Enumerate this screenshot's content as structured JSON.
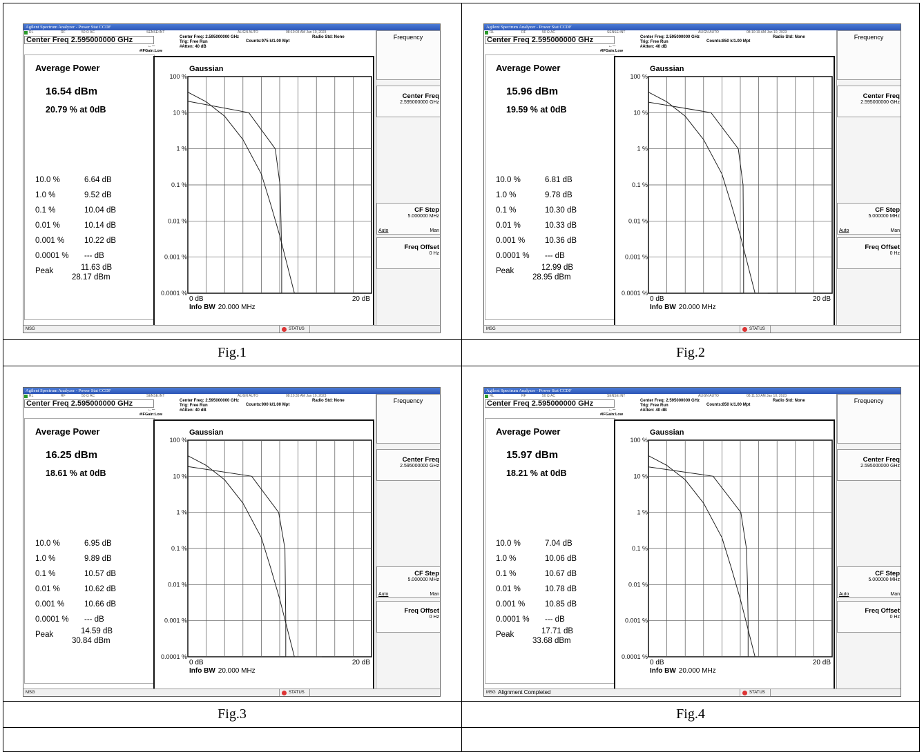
{
  "panels": [
    {
      "caption": "Fig.1",
      "title": "Agilent Spectrum Analyzer - Power Stat CCDF",
      "status_items": [
        "RL",
        "RF",
        "50 Ω AC",
        "SENSE:INT",
        "ALIGN AUTO",
        "08:10:03 AM Jan 10, 2023"
      ],
      "center_freq": "Center Freq 2.595000000 GHz",
      "info_line1": "Center Freq: 2.595000000 GHz",
      "info_line2": "Trig: Free Run",
      "info_line3": "#Atten: 40 dB",
      "counts": "Counts:975 k/1.00 Mpt",
      "radio_std": "Radio Std: None",
      "if_gain": "#IFGain:Low",
      "softkeys": {
        "frequency": "Frequency",
        "center_freq": "Center Freq",
        "center_freq_value": "2.595000000 GHz",
        "cf_step": "CF Step",
        "cf_step_value": "5.000000 MHz",
        "auto": "Auto",
        "man": "Man",
        "freq_offset": "Freq Offset",
        "freq_offset_value": "0 Hz"
      },
      "avg_label": "Average Power",
      "avg_dbm": "16.54 dBm",
      "avg_pct": "20.79 % at 0dB",
      "stats": [
        {
          "pct": "10.0 %",
          "val": "6.64 dB"
        },
        {
          "pct": "1.0 %",
          "val": "9.52 dB"
        },
        {
          "pct": "0.1 %",
          "val": "10.04 dB"
        },
        {
          "pct": "0.01 %",
          "val": "10.14 dB"
        },
        {
          "pct": "0.001 %",
          "val": "10.22 dB"
        },
        {
          "pct": "0.0001 %",
          "val": "--- dB"
        }
      ],
      "peak_label": "Peak",
      "peak_db": "11.63 dB",
      "peak_dbm": "28.17 dBm",
      "msg": "MSG",
      "msg_text": "",
      "status": "STATUS"
    },
    {
      "caption": "Fig.2",
      "title": "Agilent Spectrum Analyzer - Power Stat CCDF",
      "status_items": [
        "RL",
        "RF",
        "50 Ω AC",
        "SENSE:INT",
        "ALIGN AUTO",
        "08:10:19 AM Jan 10, 2023"
      ],
      "center_freq": "Center Freq 2.595000000 GHz",
      "info_line1": "Center Freq: 2.595000000 GHz",
      "info_line2": "Trig: Free Run",
      "info_line3": "#Atten: 40 dB",
      "counts": "Counts:850 k/1.00 Mpt",
      "radio_std": "Radio Std: None",
      "if_gain": "#IFGain:Low",
      "softkeys": {
        "frequency": "Frequency",
        "center_freq": "Center Freq",
        "center_freq_value": "2.595000000 GHz",
        "cf_step": "CF Step",
        "cf_step_value": "5.000000 MHz",
        "auto": "Auto",
        "man": "Man",
        "freq_offset": "Freq Offset",
        "freq_offset_value": "0 Hz"
      },
      "avg_label": "Average Power",
      "avg_dbm": "15.96 dBm",
      "avg_pct": "19.59 % at 0dB",
      "stats": [
        {
          "pct": "10.0 %",
          "val": "6.81 dB"
        },
        {
          "pct": "1.0 %",
          "val": "9.78 dB"
        },
        {
          "pct": "0.1 %",
          "val": "10.30 dB"
        },
        {
          "pct": "0.01 %",
          "val": "10.33 dB"
        },
        {
          "pct": "0.001 %",
          "val": "10.36 dB"
        },
        {
          "pct": "0.0001 %",
          "val": "--- dB"
        }
      ],
      "peak_label": "Peak",
      "peak_db": "12.99 dB",
      "peak_dbm": "28.95 dBm",
      "msg": "MSG",
      "msg_text": "",
      "status": "STATUS"
    },
    {
      "caption": "Fig.3",
      "title": "Agilent Spectrum Analyzer - Power Stat CCDF",
      "status_items": [
        "RL",
        "RF",
        "50 Ω AC",
        "SENSE:INT",
        "ALIGN AUTO",
        "08:10:35 AM Jan 10, 2023"
      ],
      "center_freq": "Center Freq 2.595000000 GHz",
      "info_line1": "Center Freq: 2.595000000 GHz",
      "info_line2": "Trig: Free Run",
      "info_line3": "#Atten: 40 dB",
      "counts": "Counts:900 k/1.00 Mpt",
      "radio_std": "Radio Std: None",
      "if_gain": "#IFGain:Low",
      "softkeys": {
        "frequency": "Frequency",
        "center_freq": "Center Freq",
        "center_freq_value": "2.595000000 GHz",
        "cf_step": "CF Step",
        "cf_step_value": "5.000000 MHz",
        "auto": "Auto",
        "man": "Man",
        "freq_offset": "Freq Offset",
        "freq_offset_value": "0 Hz"
      },
      "avg_label": "Average Power",
      "avg_dbm": "16.25 dBm",
      "avg_pct": "18.61 % at 0dB",
      "stats": [
        {
          "pct": "10.0 %",
          "val": "6.95 dB"
        },
        {
          "pct": "1.0 %",
          "val": "9.89 dB"
        },
        {
          "pct": "0.1 %",
          "val": "10.57 dB"
        },
        {
          "pct": "0.01 %",
          "val": "10.62 dB"
        },
        {
          "pct": "0.001 %",
          "val": "10.66 dB"
        },
        {
          "pct": "0.0001 %",
          "val": "--- dB"
        }
      ],
      "peak_label": "Peak",
      "peak_db": "14.59 dB",
      "peak_dbm": "30.84 dBm",
      "msg": "MSG",
      "msg_text": "",
      "status": "STATUS"
    },
    {
      "caption": "Fig.4",
      "title": "Agilent Spectrum Analyzer - Power Stat CCDF",
      "status_items": [
        "RL",
        "RF",
        "50 Ω AC",
        "SENSE:INT",
        "ALIGN AUTO",
        "08:11:10 AM Jan 10, 2023"
      ],
      "center_freq": "Center Freq 2.595000000 GHz",
      "info_line1": "Center Freq: 2.595000000 GHz",
      "info_line2": "Trig: Free Run",
      "info_line3": "#Atten: 40 dB",
      "counts": "Counts:850 k/1.00 Mpt",
      "radio_std": "Radio Std: None",
      "if_gain": "#IFGain:Low",
      "softkeys": {
        "frequency": "Frequency",
        "center_freq": "Center Freq",
        "center_freq_value": "2.595000000 GHz",
        "cf_step": "CF Step",
        "cf_step_value": "5.000000 MHz",
        "auto": "Auto",
        "man": "Man",
        "freq_offset": "Freq Offset",
        "freq_offset_value": "0 Hz"
      },
      "avg_label": "Average Power",
      "avg_dbm": "15.97 dBm",
      "avg_pct": "18.21 % at 0dB",
      "stats": [
        {
          "pct": "10.0 %",
          "val": "7.04 dB"
        },
        {
          "pct": "1.0 %",
          "val": "10.06 dB"
        },
        {
          "pct": "0.1 %",
          "val": "10.67 dB"
        },
        {
          "pct": "0.01 %",
          "val": "10.78 dB"
        },
        {
          "pct": "0.001 %",
          "val": "10.85 dB"
        },
        {
          "pct": "0.0001 %",
          "val": "--- dB"
        }
      ],
      "peak_label": "Peak",
      "peak_db": "17.71 dB",
      "peak_dbm": "33.68 dBm",
      "msg": "MSG",
      "msg_text": "Alignment Completed",
      "status": "STATUS"
    }
  ],
  "plot_labels": {
    "gaussian": "Gaussian",
    "y_ticks": [
      "100 %",
      "10 %",
      "1 %",
      "0.1 %",
      "0.01 %",
      "0.001 %",
      "0.0001 %"
    ],
    "x_start": "0 dB",
    "x_end": "20 dB",
    "info_bw_label": "Info BW",
    "info_bw_value": "20.000 MHz"
  },
  "chart_data": [
    {
      "type": "line",
      "x_unit": "dB",
      "xlim": [
        0,
        20
      ],
      "y_scale": "log",
      "ylim_percent": [
        0.0001,
        100
      ],
      "series": [
        {
          "name": "Gaussian",
          "points": [
            [
              0,
              37
            ],
            [
              2,
              20
            ],
            [
              4,
              8
            ],
            [
              6,
              1.8
            ],
            [
              8,
              0.2
            ],
            [
              9,
              0.03
            ],
            [
              10,
              0.004
            ],
            [
              11,
              0.0004
            ],
            [
              11.6,
              0.0001
            ]
          ]
        },
        {
          "values_db_at_percent": [
            [
              20.79,
              0
            ],
            [
              10.0,
              6.64
            ],
            [
              1.0,
              9.52
            ],
            [
              0.1,
              10.04
            ],
            [
              0.01,
              10.14
            ],
            [
              0.001,
              10.22
            ],
            [
              0.0001,
              11.63
            ]
          ]
        }
      ]
    },
    {
      "type": "line",
      "x_unit": "dB",
      "xlim": [
        0,
        20
      ],
      "y_scale": "log",
      "ylim_percent": [
        0.0001,
        100
      ],
      "series": [
        {
          "name": "Gaussian",
          "points": [
            [
              0,
              37
            ],
            [
              2,
              20
            ],
            [
              4,
              8
            ],
            [
              6,
              1.8
            ],
            [
              8,
              0.2
            ],
            [
              9,
              0.03
            ],
            [
              10,
              0.004
            ],
            [
              11,
              0.0004
            ],
            [
              11.6,
              0.0001
            ]
          ]
        },
        {
          "values_db_at_percent": [
            [
              19.59,
              0
            ],
            [
              10.0,
              6.81
            ],
            [
              1.0,
              9.78
            ],
            [
              0.1,
              10.3
            ],
            [
              0.01,
              10.33
            ],
            [
              0.001,
              10.36
            ],
            [
              0.0001,
              12.99
            ]
          ]
        }
      ]
    },
    {
      "type": "line",
      "x_unit": "dB",
      "xlim": [
        0,
        20
      ],
      "y_scale": "log",
      "ylim_percent": [
        0.0001,
        100
      ],
      "series": [
        {
          "name": "Gaussian",
          "points": [
            [
              0,
              37
            ],
            [
              2,
              20
            ],
            [
              4,
              8
            ],
            [
              6,
              1.8
            ],
            [
              8,
              0.2
            ],
            [
              9,
              0.03
            ],
            [
              10,
              0.004
            ],
            [
              11,
              0.0004
            ],
            [
              11.6,
              0.0001
            ]
          ]
        },
        {
          "values_db_at_percent": [
            [
              18.61,
              0
            ],
            [
              10.0,
              6.95
            ],
            [
              1.0,
              9.89
            ],
            [
              0.1,
              10.57
            ],
            [
              0.01,
              10.62
            ],
            [
              0.001,
              10.66
            ],
            [
              0.0001,
              14.59
            ]
          ]
        }
      ]
    },
    {
      "type": "line",
      "x_unit": "dB",
      "xlim": [
        0,
        20
      ],
      "y_scale": "log",
      "ylim_percent": [
        0.0001,
        100
      ],
      "series": [
        {
          "name": "Gaussian",
          "points": [
            [
              0,
              37
            ],
            [
              2,
              20
            ],
            [
              4,
              8
            ],
            [
              6,
              1.8
            ],
            [
              8,
              0.2
            ],
            [
              9,
              0.03
            ],
            [
              10,
              0.004
            ],
            [
              11,
              0.0004
            ],
            [
              11.6,
              0.0001
            ]
          ]
        },
        {
          "values_db_at_percent": [
            [
              18.21,
              0
            ],
            [
              10.0,
              7.04
            ],
            [
              1.0,
              10.06
            ],
            [
              0.1,
              10.67
            ],
            [
              0.01,
              10.78
            ],
            [
              0.001,
              10.85
            ],
            [
              0.0001,
              17.71
            ]
          ]
        }
      ]
    }
  ]
}
